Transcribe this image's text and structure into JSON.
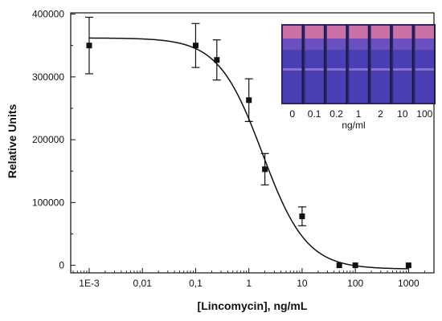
{
  "chart_data": {
    "type": "scatter",
    "xlabel": "[Lincomycin], ng/mL",
    "ylabel": "Relative Units",
    "x_scale": "log",
    "xlim": [
      0.00045,
      3000
    ],
    "ylim": [
      -12000,
      402000
    ],
    "x_ticks": [
      {
        "value": 0.001,
        "label": "1E-3"
      },
      {
        "value": 0.01,
        "label": "0,01"
      },
      {
        "value": 0.1,
        "label": "0,1"
      },
      {
        "value": 1,
        "label": "1"
      },
      {
        "value": 10,
        "label": "10"
      },
      {
        "value": 100,
        "label": "100"
      },
      {
        "value": 1000,
        "label": "1000"
      }
    ],
    "y_ticks": [
      {
        "value": 0,
        "label": "0"
      },
      {
        "value": 100000,
        "label": "100000"
      },
      {
        "value": 200000,
        "label": "200000"
      },
      {
        "value": 300000,
        "label": "300000"
      },
      {
        "value": 400000,
        "label": "400000"
      }
    ],
    "points": [
      {
        "x": 0.001,
        "y": 350000,
        "err": 45000
      },
      {
        "x": 0.1,
        "y": 350000,
        "err": 35000
      },
      {
        "x": 0.25,
        "y": 327000,
        "err": 32000
      },
      {
        "x": 1,
        "y": 263000,
        "err": 34000
      },
      {
        "x": 2,
        "y": 153000,
        "err": 25000
      },
      {
        "x": 10,
        "y": 78000,
        "err": 15000
      },
      {
        "x": 50,
        "y": 0,
        "err": 0
      },
      {
        "x": 100,
        "y": 0,
        "err": 0
      },
      {
        "x": 1000,
        "y": 0,
        "err": 0
      }
    ],
    "fit_curve": {
      "type": "4PL",
      "top": 362000,
      "bottom": -6000,
      "ec50": 1.8,
      "hill": 1.05
    },
    "grid": false,
    "legend": "none"
  },
  "inset": {
    "lane_labels": [
      "0",
      "0.1",
      "0.2",
      "1",
      "2",
      "10",
      "100"
    ],
    "unit_label": "ng/ml",
    "lane_color": "#4a3fb5",
    "top_band_color": "#e07aa6"
  }
}
